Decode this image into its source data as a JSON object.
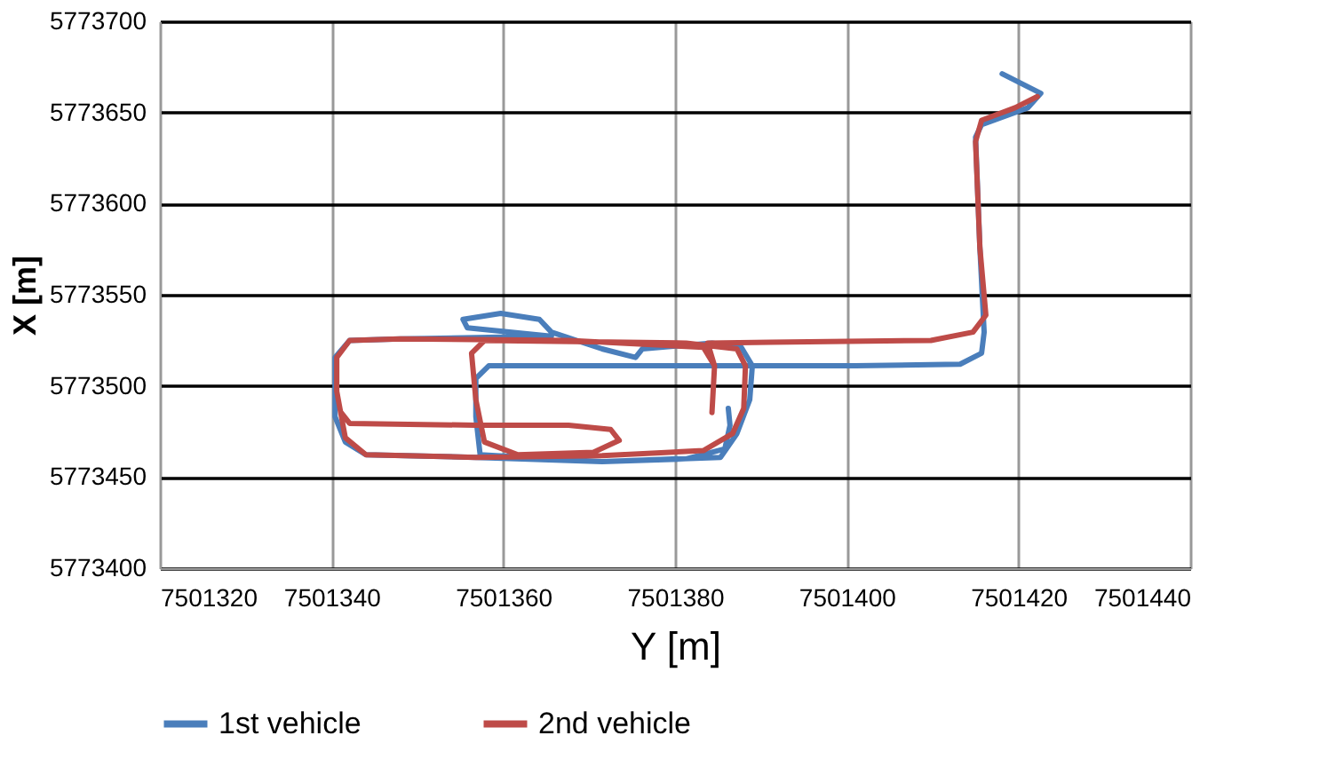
{
  "chart_data": {
    "type": "line",
    "xlabel": "Y [m]",
    "ylabel": "X [m]",
    "xlim": [
      7501320,
      7501440
    ],
    "xticks": [
      7501320,
      7501340,
      7501360,
      7501380,
      7501400,
      7501420,
      7501440
    ],
    "ylim": [
      5773400,
      5773700
    ],
    "yticks": [
      5773400,
      5773450,
      5773500,
      5773550,
      5773600,
      5773650,
      5773700
    ],
    "grid": true,
    "legend": "bottom",
    "marker": "none",
    "line_style": "solid",
    "series": [
      {
        "name": "1st vehicle",
        "color": "#4a7ebb",
        "x": [
          7501418.1,
          7501422.6,
          7501421.1,
          7501415.7,
          7501415.0,
          7501415.5,
          7501416.0,
          7501415.7,
          7501413.2,
          7501401.0,
          7501389.2,
          7501367.6,
          7501358.3,
          7501356.8,
          7501356.8,
          7501357.3,
          7501371.5,
          7501385.3,
          7501387.2,
          7501388.7,
          7501389.0,
          7501387.7,
          7501384.3,
          7501376.2,
          7501375.4,
          7501371.5,
          7501365.6,
          7501364.2,
          7501359.7,
          7501355.3,
          7501355.8,
          7501365.6,
          7501348.0,
          7501342.1,
          7501340.4,
          7501340.4,
          7501341.6,
          7501344.0,
          7501356.8,
          7501371.5,
          7501381.3,
          7501385.8,
          7501386.4,
          7501386.2
        ],
        "values": [
          5773671.2,
          5773660.5,
          5773652.6,
          5773643.3,
          5773636.4,
          5773576.0,
          5773529.5,
          5773517.9,
          5773511.9,
          5773511.0,
          5773511.0,
          5773511.0,
          5773511.0,
          5773504.0,
          5773483.1,
          5773462.2,
          5773458.5,
          5773460.8,
          5773473.8,
          5773492.4,
          5773511.0,
          5773521.2,
          5773523.5,
          5773520.3,
          5773515.6,
          5773520.3,
          5773529.5,
          5773536.5,
          5773539.8,
          5773536.5,
          5773531.9,
          5773527.2,
          5773525.8,
          5773524.9,
          5773515.6,
          5773483.1,
          5773469.2,
          5773462.2,
          5773460.8,
          5773458.5,
          5773459.9,
          5773465.4,
          5773478.4,
          5773487.7
        ]
      },
      {
        "name": "2nd vehicle",
        "color": "#be4b48",
        "x": [
          7501422.2,
          7501419.6,
          7501415.7,
          7501415.0,
          7501415.5,
          7501416.2,
          7501414.7,
          7501409.8,
          7501391.1,
          7501383.8,
          7501384.6,
          7501384.3,
          7501384.6,
          7501383.3,
          7501367.6,
          7501348.0,
          7501342.1,
          7501340.6,
          7501340.6,
          7501341.6,
          7501344.0,
          7501356.8,
          7501371.5,
          7501383.3,
          7501386.7,
          7501388.0,
          7501388.2,
          7501387.2,
          7501381.3,
          7501357.8,
          7501356.3,
          7501356.8,
          7501357.8,
          7501361.7,
          7501370.5,
          7501373.5,
          7501372.5,
          7501367.6,
          7501356.8,
          7501342.1,
          7501341.1
        ],
        "values": [
          5773658.7,
          5773652.6,
          5773645.7,
          5773634.0,
          5773576.0,
          5773538.8,
          5773529.5,
          5773524.9,
          5773524.0,
          5773523.5,
          5773511.0,
          5773485.4,
          5773511.0,
          5773521.2,
          5773524.9,
          5773525.8,
          5773524.9,
          5773515.6,
          5773497.0,
          5773471.5,
          5773462.2,
          5773460.8,
          5773461.7,
          5773464.5,
          5773473.8,
          5773487.7,
          5773511.0,
          5773520.3,
          5773523.5,
          5773524.9,
          5773517.9,
          5773492.4,
          5773469.2,
          5773462.2,
          5773463.6,
          5773470.1,
          5773476.1,
          5773478.4,
          5773478.4,
          5773479.4,
          5773485.4
        ]
      }
    ]
  }
}
